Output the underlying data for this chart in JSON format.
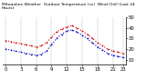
{
  "title": "Milwaukee Weather  Outdoor Temperature (vs)  Wind Chill (Last 24 Hours)",
  "x": [
    0,
    1,
    2,
    3,
    4,
    5,
    6,
    7,
    8,
    9,
    10,
    11,
    12,
    13,
    14,
    15,
    16,
    17,
    18,
    19,
    20,
    21,
    22,
    23
  ],
  "temp": [
    28,
    27,
    26,
    25,
    24,
    23,
    22,
    23,
    26,
    31,
    36,
    39,
    41,
    42,
    40,
    37,
    34,
    30,
    26,
    23,
    20,
    18,
    17,
    16
  ],
  "windchill": [
    20,
    19,
    18,
    17,
    16,
    15,
    14,
    15,
    18,
    24,
    30,
    34,
    37,
    38,
    36,
    33,
    30,
    26,
    22,
    19,
    16,
    14,
    13,
    12
  ],
  "temp_color": "#cc0000",
  "windchill_color": "#0000cc",
  "bg_color": "#ffffff",
  "grid_color": "#888888",
  "ylim": [
    5,
    50
  ],
  "ytick_vals": [
    10,
    20,
    30,
    40,
    50
  ],
  "ytick_labels": [
    "10",
    "20",
    "30",
    "40",
    "50"
  ],
  "gridline_x": [
    0,
    3,
    6,
    9,
    12,
    15,
    18,
    21,
    23
  ],
  "xtick_vals": [
    0,
    3,
    6,
    9,
    12,
    15,
    18,
    21,
    23
  ],
  "xtick_labels": [
    "0",
    "3",
    "6",
    "9",
    "12",
    "15",
    "18",
    "21",
    "23"
  ],
  "xlabel_fontsize": 3.8,
  "ylabel_fontsize": 3.8,
  "title_fontsize": 3.2,
  "line_width": 0.8,
  "marker_size": 1.2
}
